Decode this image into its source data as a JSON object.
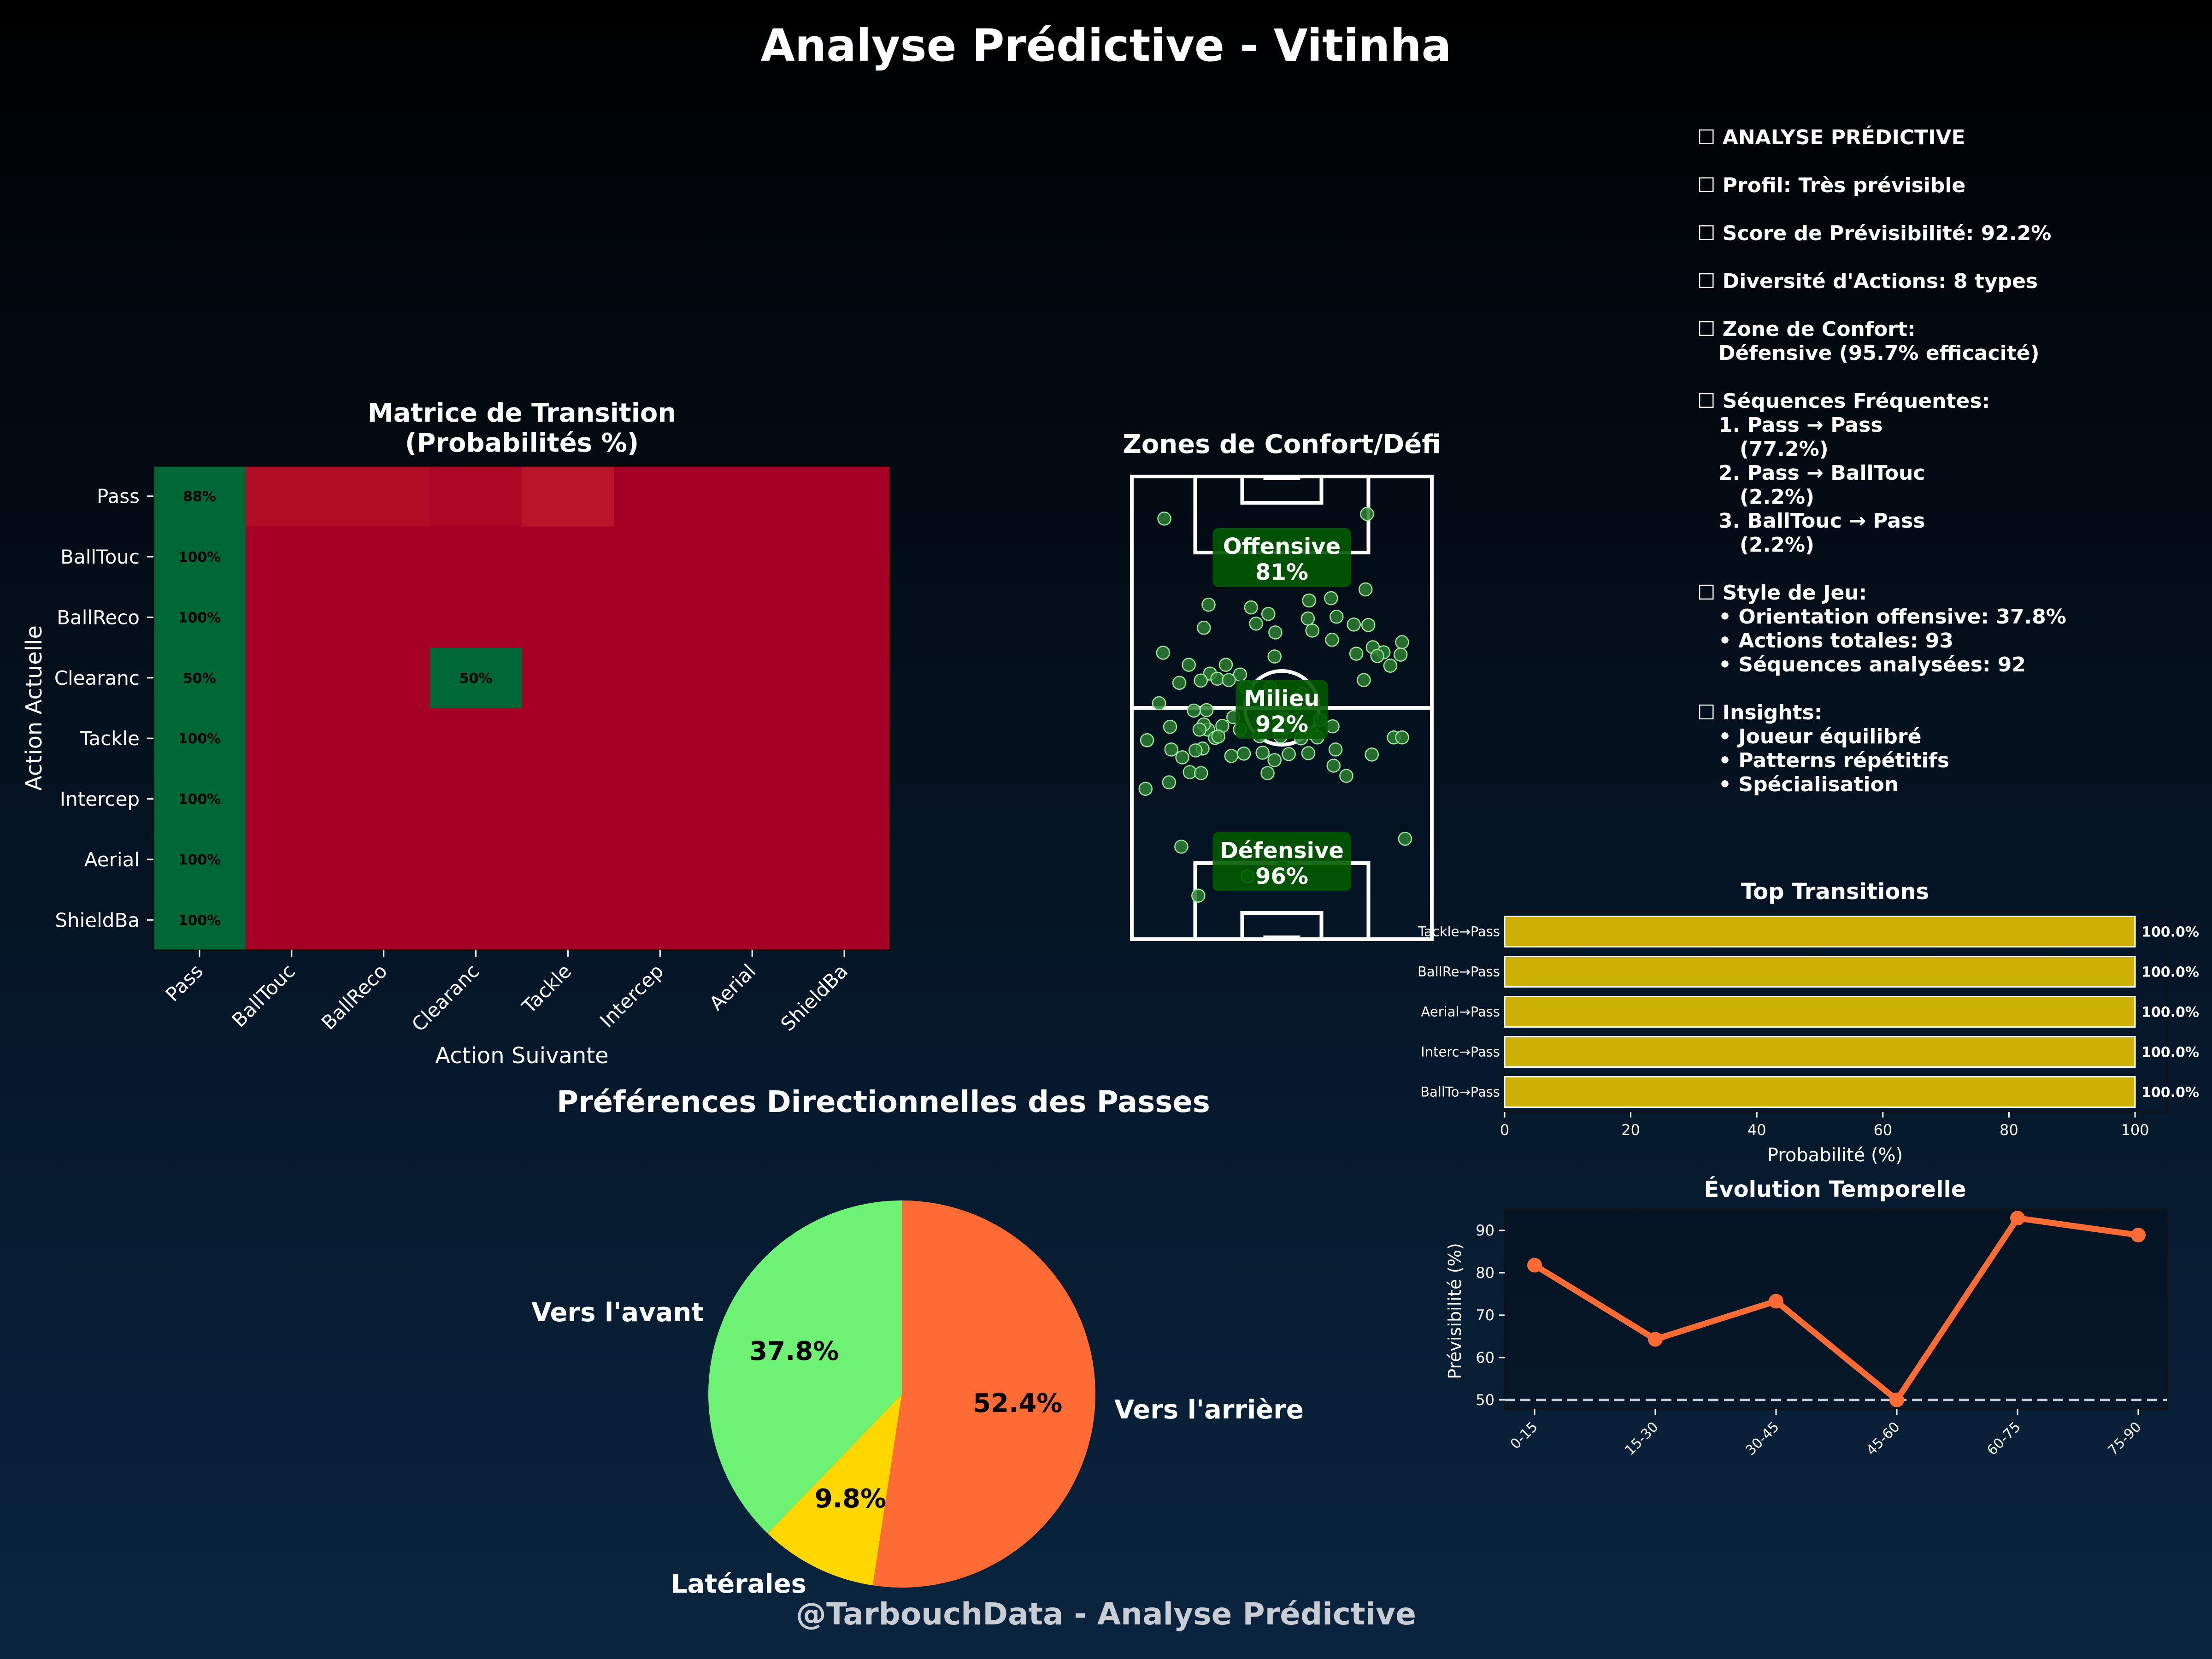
{
  "page": {
    "title": "Analyse Prédictive - Vitinha",
    "footer": "@TarbouchData - Analyse Prédictive"
  },
  "colors": {
    "green": "#006837",
    "red": "#a50026",
    "dark_red": "#a50026",
    "gold": "#cdb005",
    "orange": "#ff6b35",
    "light_green": "#6ef273",
    "yellow": "#ffd700",
    "pitch_zone": "#005a00"
  },
  "chart_data": [
    {
      "type": "heatmap",
      "title": "Matrice de Transition\n(Probabilités %)",
      "xlabel": "Action Suivante",
      "ylabel": "Action Actuelle",
      "rows": [
        "Pass",
        "BallTouc",
        "BallReco",
        "Clearanc",
        "Tackle",
        "Intercep",
        "Aerial",
        "ShieldBa"
      ],
      "cols": [
        "Pass",
        "BallTouc",
        "BallReco",
        "Clearanc",
        "Tackle",
        "Intercep",
        "Aerial",
        "ShieldBa"
      ],
      "values": [
        [
          88,
          2.2,
          2.2,
          1.1,
          3.3,
          0,
          0,
          0
        ],
        [
          100,
          0,
          0,
          0,
          0,
          0,
          0,
          0
        ],
        [
          100,
          0,
          0,
          0,
          0,
          0,
          0,
          0
        ],
        [
          50,
          0,
          0,
          50,
          0,
          0,
          0,
          0
        ],
        [
          100,
          0,
          0,
          0,
          0,
          0,
          0,
          0
        ],
        [
          100,
          0,
          0,
          0,
          0,
          0,
          0,
          0
        ],
        [
          100,
          0,
          0,
          0,
          0,
          0,
          0,
          0
        ],
        [
          100,
          0,
          0,
          0,
          0,
          0,
          0,
          0
        ]
      ],
      "cell_labels": [
        [
          "88%",
          "",
          "",
          "",
          "",
          "",
          "",
          ""
        ],
        [
          "100%",
          "",
          "",
          "",
          "",
          "",
          "",
          ""
        ],
        [
          "100%",
          "",
          "",
          "",
          "",
          "",
          "",
          ""
        ],
        [
          "50%",
          "",
          "",
          "50%",
          "",
          "",
          "",
          ""
        ],
        [
          "100%",
          "",
          "",
          "",
          "",
          "",
          "",
          ""
        ],
        [
          "100%",
          "",
          "",
          "",
          "",
          "",
          "",
          ""
        ],
        [
          "100%",
          "",
          "",
          "",
          "",
          "",
          "",
          ""
        ],
        [
          "100%",
          "",
          "",
          "",
          "",
          "",
          "",
          ""
        ]
      ]
    },
    {
      "type": "scatter",
      "title": "Zones de Confort/Défi",
      "zones": [
        {
          "name": "Offensive",
          "label": "81%",
          "value": 81
        },
        {
          "name": "Milieu",
          "label": "92%",
          "value": 92
        },
        {
          "name": "Défensive",
          "label": "96%",
          "value": 96
        }
      ],
      "points": [
        [
          13.0,
          90.9
        ],
        [
          94.1,
          91.9
        ],
        [
          93.5,
          75.6
        ],
        [
          79.7,
          73.7
        ],
        [
          81.9,
          69.7
        ],
        [
          57.4,
          66.3
        ],
        [
          28.8,
          67.3
        ],
        [
          47.7,
          71.7
        ],
        [
          54.6,
          70.3
        ],
        [
          57.1,
          61.1
        ],
        [
          70.4,
          69.3
        ],
        [
          72.2,
          66.7
        ],
        [
          80.1,
          64.7
        ],
        [
          96.4,
          63.1
        ],
        [
          100.7,
          62.0
        ],
        [
          108.1,
          64.2
        ],
        [
          107.5,
          61.5
        ],
        [
          103.4,
          59.1
        ],
        [
          98.2,
          61.2
        ],
        [
          92.8,
          56.0
        ],
        [
          12.5,
          61.9
        ],
        [
          22.8,
          59.3
        ],
        [
          31.3,
          57.4
        ],
        [
          27.6,
          55.9
        ],
        [
          34.2,
          56.3
        ],
        [
          43.3,
          57.2
        ],
        [
          55.4,
          54.3
        ],
        [
          49.7,
          68.2
        ],
        [
          94.6,
          67.9
        ],
        [
          88.8,
          68.0
        ],
        [
          19.0,
          55.4
        ],
        [
          10.9,
          51.0
        ],
        [
          15.3,
          45.9
        ],
        [
          30.5,
          45.3
        ],
        [
          33.3,
          43.5
        ],
        [
          28.3,
          41.2
        ],
        [
          23.2,
          36.1
        ],
        [
          14.9,
          33.9
        ],
        [
          20.2,
          39.3
        ],
        [
          39.8,
          39.6
        ],
        [
          57.1,
          38.7
        ],
        [
          52.3,
          40.3
        ],
        [
          62.8,
          40.0
        ],
        [
          72.0,
          44.6
        ],
        [
          74.2,
          43.6
        ],
        [
          81.5,
          41.0
        ],
        [
          80.7,
          37.5
        ],
        [
          85.8,
          35.3
        ],
        [
          104.8,
          43.6
        ],
        [
          96.0,
          39.9
        ],
        [
          108.1,
          43.6
        ],
        [
          6.1,
          43.0
        ],
        [
          5.5,
          32.5
        ],
        [
          27.7,
          35.9
        ],
        [
          54.3,
          35.9
        ],
        [
          51.1,
          43.9
        ],
        [
          70.6,
          40.2
        ],
        [
          68.1,
          53.0
        ],
        [
          45.7,
          54.5
        ],
        [
          44.8,
          40.1
        ],
        [
          28.8,
          46.4
        ],
        [
          25.5,
          40.8
        ],
        [
          109.3,
          21.7
        ],
        [
          19.8,
          20.0
        ],
        [
          60.3,
          15.6
        ],
        [
          46.3,
          13.6
        ],
        [
          26.6,
          9.4
        ],
        [
          38.8,
          56.0
        ],
        [
          40.6,
          48.0
        ],
        [
          43.2,
          45.3
        ],
        [
          59.5,
          43.8
        ],
        [
          60.7,
          47.7
        ],
        [
          75.2,
          47.4
        ],
        [
          67.7,
          43.4
        ],
        [
          64.3,
          46.6
        ],
        [
          80.3,
          46.0
        ],
        [
          36.2,
          46.1
        ],
        [
          29.9,
          49.5
        ],
        [
          24.8,
          49.4
        ],
        [
          15.8,
          41.0
        ],
        [
          34.6,
          43.8
        ],
        [
          27.1,
          45.3
        ],
        [
          61.9,
          45.9
        ],
        [
          89.8,
          61.7
        ],
        [
          30.7,
          72.3
        ],
        [
          70.9,
          73.2
        ],
        [
          37.6,
          59.3
        ]
      ]
    },
    {
      "type": "pie",
      "title": "Préférences Directionnelles des Passes",
      "slices": [
        {
          "label": "Vers l'arrière",
          "value": 52.4,
          "pct": "52.4%"
        },
        {
          "label": "Latérales",
          "value": 9.8,
          "pct": "9.8%"
        },
        {
          "label": "Vers l'avant",
          "value": 37.8,
          "pct": "37.8%"
        }
      ]
    },
    {
      "type": "bar",
      "orientation": "horizontal",
      "title": "Top Transitions",
      "xlabel": "Probabilité (%)",
      "xlim": [
        0,
        100
      ],
      "xticks": [
        "0",
        "20",
        "40",
        "60",
        "80",
        "100"
      ],
      "categories": [
        "Tackle→Pass",
        "BallRe→Pass",
        "Aerial→Pass",
        "Interc→Pass",
        "BallTo→Pass"
      ],
      "values": [
        100,
        100,
        100,
        100,
        100
      ],
      "value_labels": [
        "100.0%",
        "100.0%",
        "100.0%",
        "100.0%",
        "100.0%"
      ]
    },
    {
      "type": "line",
      "title": "Évolution Temporelle",
      "ylabel": "Prévisibilité (%)",
      "categories": [
        "0-15",
        "15-30",
        "30-45",
        "45-60",
        "60-75",
        "75-90"
      ],
      "values": [
        81.8,
        64.3,
        73.3,
        50.0,
        92.9,
        88.9
      ],
      "ylim": [
        47.8,
        95.0
      ],
      "yticks": [
        "50",
        "60",
        "70",
        "80",
        "90"
      ],
      "reference_line": 50
    }
  ],
  "analysis": {
    "lines": [
      "☐ ANALYSE PRÉDICTIVE",
      "",
      "☐ Profil: Très prévisible",
      "",
      "☐ Score de Prévisibilité: 92.2%",
      "",
      "☐ Diversité d'Actions: 8 types",
      "",
      "☐ Zone de Confort:",
      "   Défensive (95.7% efficacité)",
      "",
      "☐ Séquences Fréquentes:",
      "   1. Pass → Pass",
      "      (77.2%)",
      "   2. Pass → BallTouc",
      "      (2.2%)",
      "   3. BallTouc → Pass",
      "      (2.2%)",
      "",
      "☐ Style de Jeu:",
      "   • Orientation offensive: 37.8%",
      "   • Actions totales: 93",
      "   • Séquences analysées: 92",
      "",
      "☐ Insights:",
      "   • Joueur équilibré",
      "   • Patterns répétitifs",
      "   • Spécialisation"
    ]
  }
}
